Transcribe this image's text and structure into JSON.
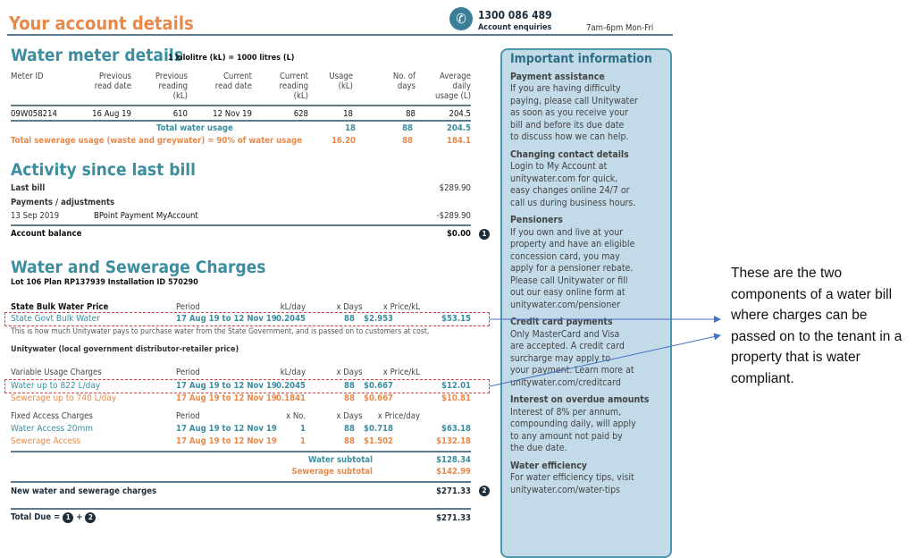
{
  "header": {
    "title": "Your account details",
    "phone": "1300 086 489",
    "phone_label": "Account enquiries",
    "hours": "7am-6pm Mon-Fri",
    "icon": "phone-icon"
  },
  "meter": {
    "title": "Water meter details",
    "subtitle": "1 kilolitre (kL) = 1000 litres (L)",
    "columns": [
      "Meter ID",
      "Previous\nread date",
      "Previous\nreading\n(kL)",
      "Current\nread date",
      "Current\nreading\n(kL)",
      "Usage\n(kL)",
      "No. of\ndays",
      "Average\ndaily\nusage (L)"
    ],
    "row": [
      "09W058214",
      "16 Aug 19",
      "610",
      "12 Nov 19",
      "628",
      "18",
      "88",
      "204.5"
    ],
    "total_water": {
      "label": "Total water usage",
      "usage": "18",
      "days": "88",
      "avg": "204.5"
    },
    "total_sewer": {
      "label": "Total sewerage usage (waste and greywater) = 90% of water usage",
      "usage": "16.20",
      "days": "88",
      "avg": "184.1"
    }
  },
  "activity": {
    "title": "Activity since last bill",
    "last_bill_label": "Last bill",
    "last_bill": "$289.90",
    "payments_label": "Payments / adjustments",
    "payment_date": "13 Sep 2019",
    "payment_desc": "BPoint Payment MyAccount",
    "payment_amount": "-$289.90",
    "balance_label": "Account balance",
    "balance": "$0.00",
    "marker": "1"
  },
  "charges": {
    "title": "Water and Sewerage Charges",
    "property": "Lot 106 Plan RP137939 Installation ID 570290",
    "bulk": {
      "header": [
        "State Bulk Water Price",
        "Period",
        "kL/day",
        "x Days",
        "x Price/kL"
      ],
      "row": [
        "State Govt Bulk Water",
        "17 Aug 19 to 12 Nov 19",
        "0.2045",
        "88",
        "$2.953",
        "$53.15"
      ],
      "note": "This is how much Unitywater pays to purchase water from the State Government, and is passed on to customers at cost."
    },
    "unity_title": "Unitywater (local government distributor-retailer price)",
    "variable": {
      "header": [
        "Variable Usage Charges",
        "Period",
        "kL/day",
        "x Days",
        "x Price/kL"
      ],
      "rows": [
        [
          "Water up to 822 L/day",
          "17 Aug 19 to 12 Nov 19",
          "0.2045",
          "88",
          "$0.667",
          "$12.01"
        ],
        [
          "Sewerage up to 740 L/day",
          "17 Aug 19 to 12 Nov 19",
          "0.1841",
          "88",
          "$0.667",
          "$10.81"
        ]
      ]
    },
    "fixed": {
      "header": [
        "Fixed Access Charges",
        "Period",
        "x No.",
        "x Days",
        "x Price/day"
      ],
      "rows": [
        [
          "Water Access 20mm",
          "17 Aug 19 to 12 Nov 19",
          "1",
          "88",
          "$0.718",
          "$63.18"
        ],
        [
          "Sewerage Access",
          "17 Aug 19 to 12 Nov 19",
          "1",
          "88",
          "$1.502",
          "$132.18"
        ]
      ]
    },
    "water_subtotal_label": "Water subtotal",
    "water_subtotal": "$128.34",
    "sewer_subtotal_label": "Sewerage subtotal",
    "sewer_subtotal": "$142.99",
    "new_label": "New water and sewerage charges",
    "new_amount": "$271.33",
    "new_marker": "2",
    "total_label": "Total Due =",
    "plus": "+",
    "total_marker1": "1",
    "total_marker2": "2",
    "total_amount": "$271.33"
  },
  "info": {
    "title": "Important information",
    "sections": [
      {
        "heading": "Payment assistance",
        "body": "If you are having difficulty\npaying, please call Unitywater\nas soon as you receive your\nbill and before its due date\nto discuss how we can help."
      },
      {
        "heading": "Changing contact details",
        "body": "Login to My Account at\nunitywater.com for quick,\neasy changes online 24/7 or\ncall us during business hours."
      },
      {
        "heading": "Pensioners",
        "body": "If you own and live at your\nproperty and have an eligible\nconcession card, you may\napply for a pensioner rebate.\nPlease call Unitywater or fill\nout our easy online form at\nunitywater.com/pensioner"
      },
      {
        "heading": "Credit card payments",
        "body": "Only MasterCard and Visa\nare accepted. A credit card\nsurcharge may apply to\nyour payment. Learn more at\nunitywater.com/creditcard"
      },
      {
        "heading": "Interest on overdue amounts",
        "body": "Interest of 8% per annum,\ncompounding daily, will apply\nto any amount not paid by\nthe due date."
      },
      {
        "heading": "Water efficiency",
        "body": "For water efficiency tips, visit\nunitywater.com/water-tips"
      }
    ]
  },
  "annotation": {
    "text": "These are the two components of a water bill where charges can be passed on to the tenant in a property that is water compliant.",
    "color": "#4472c4"
  },
  "colors": {
    "teal": "#3a8ea0",
    "orange": "#e8894a",
    "highlight": "#e04040"
  }
}
